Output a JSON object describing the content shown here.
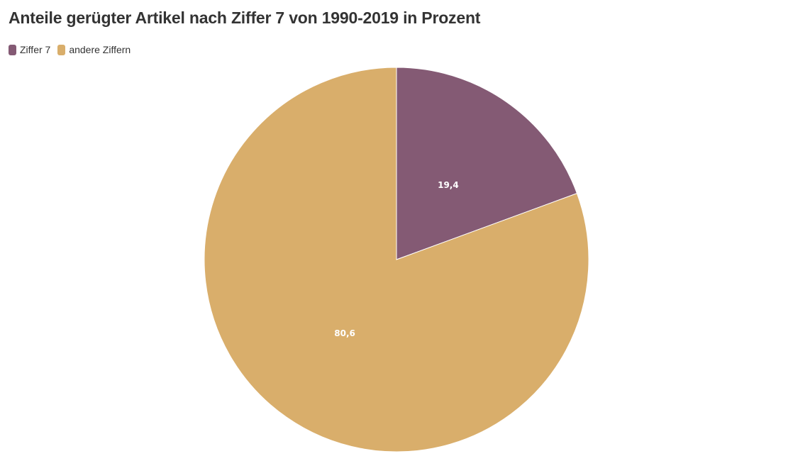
{
  "chart_data": {
    "type": "pie",
    "title": "Anteile gerügter Artikel nach Ziffer 7 von 1990-2019 in Prozent",
    "legend_position": "top-left",
    "slices": [
      {
        "name": "Ziffer 7",
        "value": 19.4,
        "label": "19,4",
        "color": "#845a74"
      },
      {
        "name": "andere Ziffern",
        "value": 80.6,
        "label": "80,6",
        "color": "#d9ae6b"
      }
    ]
  }
}
